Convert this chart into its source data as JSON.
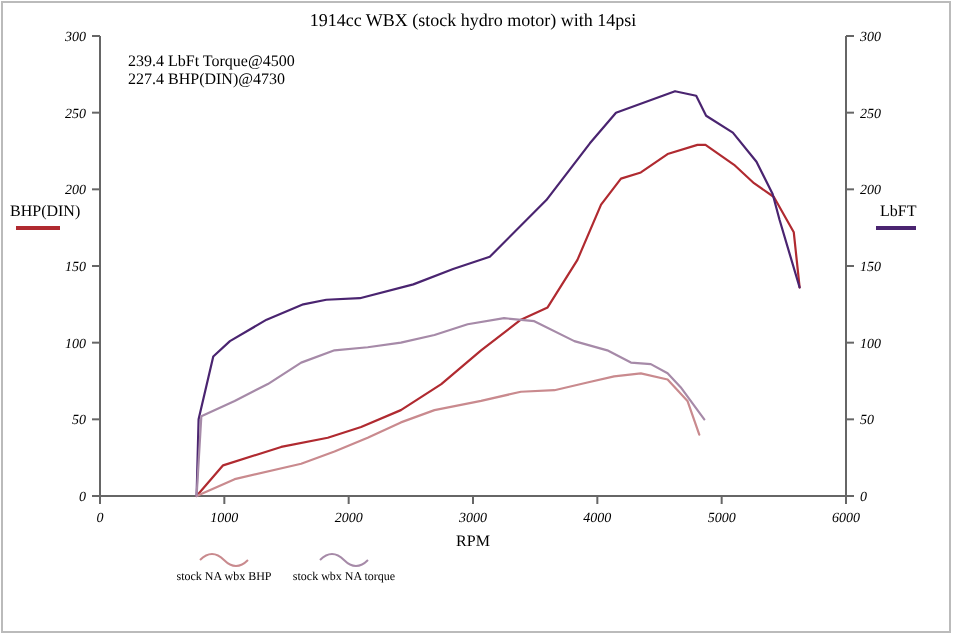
{
  "chart_data": {
    "type": "line",
    "title": "1914cc WBX (stock hydro motor) with 14psi",
    "xlabel": "RPM",
    "ylabel": "BHP(DIN)",
    "y2label": "LbFT",
    "annotations": [
      "239.4 LbFt Torque@4500",
      "227.4 BHP(DIN)@4730"
    ],
    "xlim": [
      0,
      6000
    ],
    "xticks": [
      0,
      1000,
      2000,
      3000,
      4000,
      5000,
      6000
    ],
    "ylim": [
      0,
      300
    ],
    "yticks": [
      0,
      50,
      100,
      150,
      200,
      250,
      300
    ],
    "y2lim": [
      0,
      300
    ],
    "y2ticks": [
      0,
      50,
      100,
      150,
      200,
      250,
      300
    ],
    "grid": false,
    "legend": "bottom",
    "marker": "none",
    "line_style": "solid",
    "series": [
      {
        "color": "#b02a30",
        "x": [
          777,
          990,
          1457,
          1832,
          2100,
          2420,
          2745,
          3065,
          3385,
          3600,
          3840,
          4030,
          4190,
          4350,
          4565,
          4805,
          4870,
          5100,
          5260,
          5420,
          5580,
          5627
        ],
        "values": [
          0,
          20,
          32,
          38,
          45,
          56,
          73,
          95,
          115,
          123,
          154,
          190,
          207,
          211,
          223,
          229,
          229,
          216,
          204,
          195,
          172,
          136
        ]
      },
      {
        "color": "#4a2470",
        "axis": "y2",
        "x": [
          777,
          793,
          911,
          1045,
          1340,
          1635,
          1820,
          2090,
          2520,
          2840,
          3135,
          3590,
          3940,
          4150,
          4625,
          4795,
          4875,
          5090,
          5280,
          5410,
          5466,
          5627
        ],
        "values": [
          0,
          50,
          91,
          101,
          115,
          125,
          128,
          129,
          138,
          148,
          156,
          193,
          230,
          250,
          264,
          261,
          248,
          237,
          218,
          197,
          180,
          136
        ]
      },
      {
        "name": "stock NA wbx BHP",
        "color": "#c98a8e",
        "x": [
          777,
          1083,
          1618,
          1886,
          2153,
          2420,
          2690,
          3065,
          3385,
          3655,
          3920,
          4135,
          4350,
          4565,
          4725,
          4820
        ],
        "values": [
          0,
          11,
          21,
          29,
          38,
          48,
          56,
          62,
          68,
          69,
          74,
          78,
          80,
          76,
          62,
          40
        ]
      },
      {
        "name": "stock wbx NA torque",
        "color": "#a68aa8",
        "axis": "y2",
        "x": [
          777,
          815,
          1083,
          1350,
          1618,
          1886,
          2153,
          2420,
          2690,
          2957,
          3250,
          3493,
          3815,
          4080,
          4270,
          4430,
          4565,
          4670,
          4860
        ],
        "values": [
          0,
          52,
          62,
          73,
          87,
          95,
          97,
          100,
          105,
          112,
          116,
          114,
          101,
          95,
          87,
          86,
          80,
          71,
          50
        ]
      }
    ]
  }
}
